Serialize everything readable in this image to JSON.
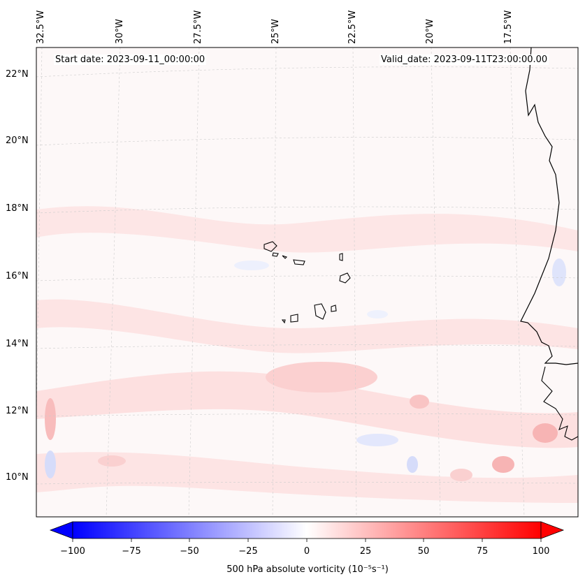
{
  "map": {
    "start_label": "Start date: 2023-09-11_00:00:00",
    "valid_label": "Valid_date: 2023-09-11T23:00:00.00",
    "lat_labels": [
      "22°N",
      "20°N",
      "18°N",
      "16°N",
      "14°N",
      "12°N",
      "10°N"
    ],
    "lon_labels": [
      "32.5°W",
      "30°W",
      "27.5°W",
      "25°W",
      "22.5°W",
      "20°W",
      "17.5°W"
    ],
    "background_color": "#fdf8f8",
    "coastline_color": "#000000"
  },
  "colorbar": {
    "label": "500 hPa absolute vorticity (10⁻⁵s⁻¹)",
    "ticks": [
      "−100",
      "−75",
      "−50",
      "−25",
      "0",
      "25",
      "50",
      "75",
      "100"
    ],
    "min": -100,
    "max": 100,
    "low_color": "#0000ff",
    "mid_color": "#ffffff",
    "high_color": "#ff0000",
    "extend": "both"
  }
}
